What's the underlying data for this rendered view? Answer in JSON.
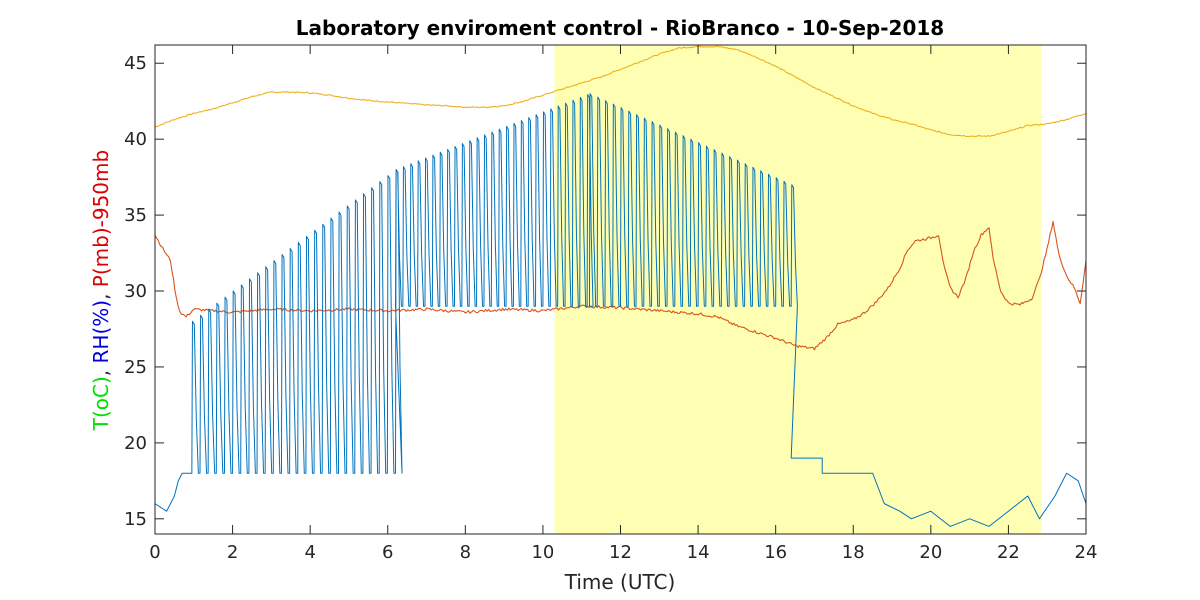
{
  "chart_data": {
    "type": "line",
    "title": "Laboratory enviroment control - RioBranco - 10-Sep-2018",
    "xlabel": "Time (UTC)",
    "ylabel_parts": [
      {
        "text": "T(oC)",
        "color": "#00e000"
      },
      {
        "text": ", ",
        "color": "#262626"
      },
      {
        "text": "RH(%)",
        "color": "#0000dd"
      },
      {
        "text": ", ",
        "color": "#262626"
      },
      {
        "text": "P(mb)-950mb",
        "color": "#dd0000"
      }
    ],
    "xlim": [
      0,
      24
    ],
    "ylim": [
      14,
      46.2
    ],
    "xticks": [
      0,
      2,
      4,
      6,
      8,
      10,
      12,
      14,
      16,
      18,
      20,
      22,
      24
    ],
    "yticks": [
      15,
      20,
      25,
      30,
      35,
      40,
      45
    ],
    "shaded_x_range": [
      10.3,
      22.85
    ],
    "shade_color": "#ffffb3",
    "series": [
      {
        "key": "temperature",
        "color": "#edb120",
        "points": [
          [
            0,
            40.8
          ],
          [
            0.5,
            41.3
          ],
          [
            1,
            41.7
          ],
          [
            1.5,
            42
          ],
          [
            2,
            42.4
          ],
          [
            2.5,
            42.8
          ],
          [
            3,
            43.1
          ],
          [
            3.5,
            43.1
          ],
          [
            4,
            43.05
          ],
          [
            4.5,
            42.9
          ],
          [
            5,
            42.7
          ],
          [
            5.5,
            42.55
          ],
          [
            6,
            42.45
          ],
          [
            6.5,
            42.35
          ],
          [
            7,
            42.25
          ],
          [
            7.5,
            42.2
          ],
          [
            8,
            42.1
          ],
          [
            8.5,
            42.1
          ],
          [
            9,
            42.2
          ],
          [
            9.5,
            42.5
          ],
          [
            10,
            42.9
          ],
          [
            10.5,
            43.3
          ],
          [
            11,
            43.7
          ],
          [
            11.5,
            44.1
          ],
          [
            12,
            44.6
          ],
          [
            12.5,
            45.1
          ],
          [
            13,
            45.6
          ],
          [
            13.5,
            46
          ],
          [
            14,
            46.1
          ],
          [
            14.5,
            46.1
          ],
          [
            15,
            45.9
          ],
          [
            15.5,
            45.4
          ],
          [
            16,
            44.8
          ],
          [
            16.5,
            44.1
          ],
          [
            17,
            43.4
          ],
          [
            17.5,
            42.8
          ],
          [
            18,
            42.2
          ],
          [
            18.5,
            41.7
          ],
          [
            19,
            41.3
          ],
          [
            19.5,
            41
          ],
          [
            20,
            40.6
          ],
          [
            20.5,
            40.3
          ],
          [
            21,
            40.2
          ],
          [
            21.5,
            40.2
          ],
          [
            22,
            40.5
          ],
          [
            22.5,
            40.9
          ],
          [
            23,
            41
          ],
          [
            23.5,
            41.3
          ],
          [
            24,
            41.7
          ]
        ]
      },
      {
        "key": "pressure",
        "color": "#d95319",
        "points": [
          [
            0,
            33.7
          ],
          [
            0.2,
            32.8
          ],
          [
            0.4,
            32
          ],
          [
            0.55,
            29.5
          ],
          [
            0.65,
            28.6
          ],
          [
            0.8,
            28.3
          ],
          [
            1,
            28.8
          ],
          [
            2,
            28.6
          ],
          [
            3,
            28.8
          ],
          [
            4,
            28.7
          ],
          [
            5,
            28.8
          ],
          [
            6,
            28.7
          ],
          [
            7,
            28.8
          ],
          [
            8,
            28.6
          ],
          [
            9,
            28.8
          ],
          [
            10,
            28.7
          ],
          [
            11,
            29
          ],
          [
            12,
            28.9
          ],
          [
            13,
            28.7
          ],
          [
            14,
            28.5
          ],
          [
            14.5,
            28.3
          ],
          [
            15,
            27.7
          ],
          [
            15.5,
            27.3
          ],
          [
            16,
            26.9
          ],
          [
            16.5,
            26.4
          ],
          [
            17,
            26.2
          ],
          [
            17.3,
            26.9
          ],
          [
            17.6,
            27.8
          ],
          [
            18,
            28.1
          ],
          [
            18.3,
            28.6
          ],
          [
            18.6,
            29.3
          ],
          [
            18.9,
            30.2
          ],
          [
            19.2,
            31.5
          ],
          [
            19.4,
            32.7
          ],
          [
            19.6,
            33.3
          ],
          [
            20,
            33.5
          ],
          [
            20.2,
            33.7
          ],
          [
            20.35,
            31.5
          ],
          [
            20.5,
            30.2
          ],
          [
            20.7,
            29.6
          ],
          [
            20.9,
            30.8
          ],
          [
            21.1,
            32.6
          ],
          [
            21.3,
            33.7
          ],
          [
            21.5,
            34.2
          ],
          [
            21.6,
            32.2
          ],
          [
            21.8,
            30
          ],
          [
            22,
            29.2
          ],
          [
            22.3,
            29.1
          ],
          [
            22.6,
            29.5
          ],
          [
            22.8,
            30.8
          ],
          [
            23,
            32.8
          ],
          [
            23.15,
            34.6
          ],
          [
            23.3,
            32.4
          ],
          [
            23.5,
            31
          ],
          [
            23.7,
            30.2
          ],
          [
            23.85,
            29.2
          ],
          [
            24,
            32
          ]
        ]
      },
      {
        "key": "humidity",
        "color": "#0072bd",
        "oscillation_segments": [
          {
            "x_start": 0.95,
            "x_end": 6.2,
            "period": 0.21,
            "low": 18,
            "high_start": 28,
            "high_end": 38
          },
          {
            "x_start": 6.2,
            "x_end": 11.2,
            "period": 0.19,
            "low": 29,
            "high_start": 38,
            "high_end": 43
          },
          {
            "x_start": 11.2,
            "x_end": 16.4,
            "period": 0.2,
            "low": 29,
            "high_start": 43,
            "high_end": 37
          }
        ],
        "points": [
          [
            0,
            16
          ],
          [
            0.3,
            15.5
          ],
          [
            0.5,
            16.5
          ],
          [
            0.6,
            17.5
          ],
          [
            0.7,
            18
          ],
          [
            0.95,
            18
          ],
          [
            16.4,
            19
          ],
          [
            17.2,
            19
          ],
          [
            17.2,
            18
          ],
          [
            18.5,
            18
          ],
          [
            18.8,
            16
          ],
          [
            19.2,
            15.5
          ],
          [
            19.5,
            15
          ],
          [
            20,
            15.5
          ],
          [
            20.5,
            14.5
          ],
          [
            21,
            15
          ],
          [
            21.5,
            14.5
          ],
          [
            22,
            15.5
          ],
          [
            22.5,
            16.5
          ],
          [
            22.8,
            15
          ],
          [
            23.2,
            16.5
          ],
          [
            23.5,
            18
          ],
          [
            23.8,
            17.5
          ],
          [
            24,
            16
          ]
        ]
      }
    ]
  }
}
